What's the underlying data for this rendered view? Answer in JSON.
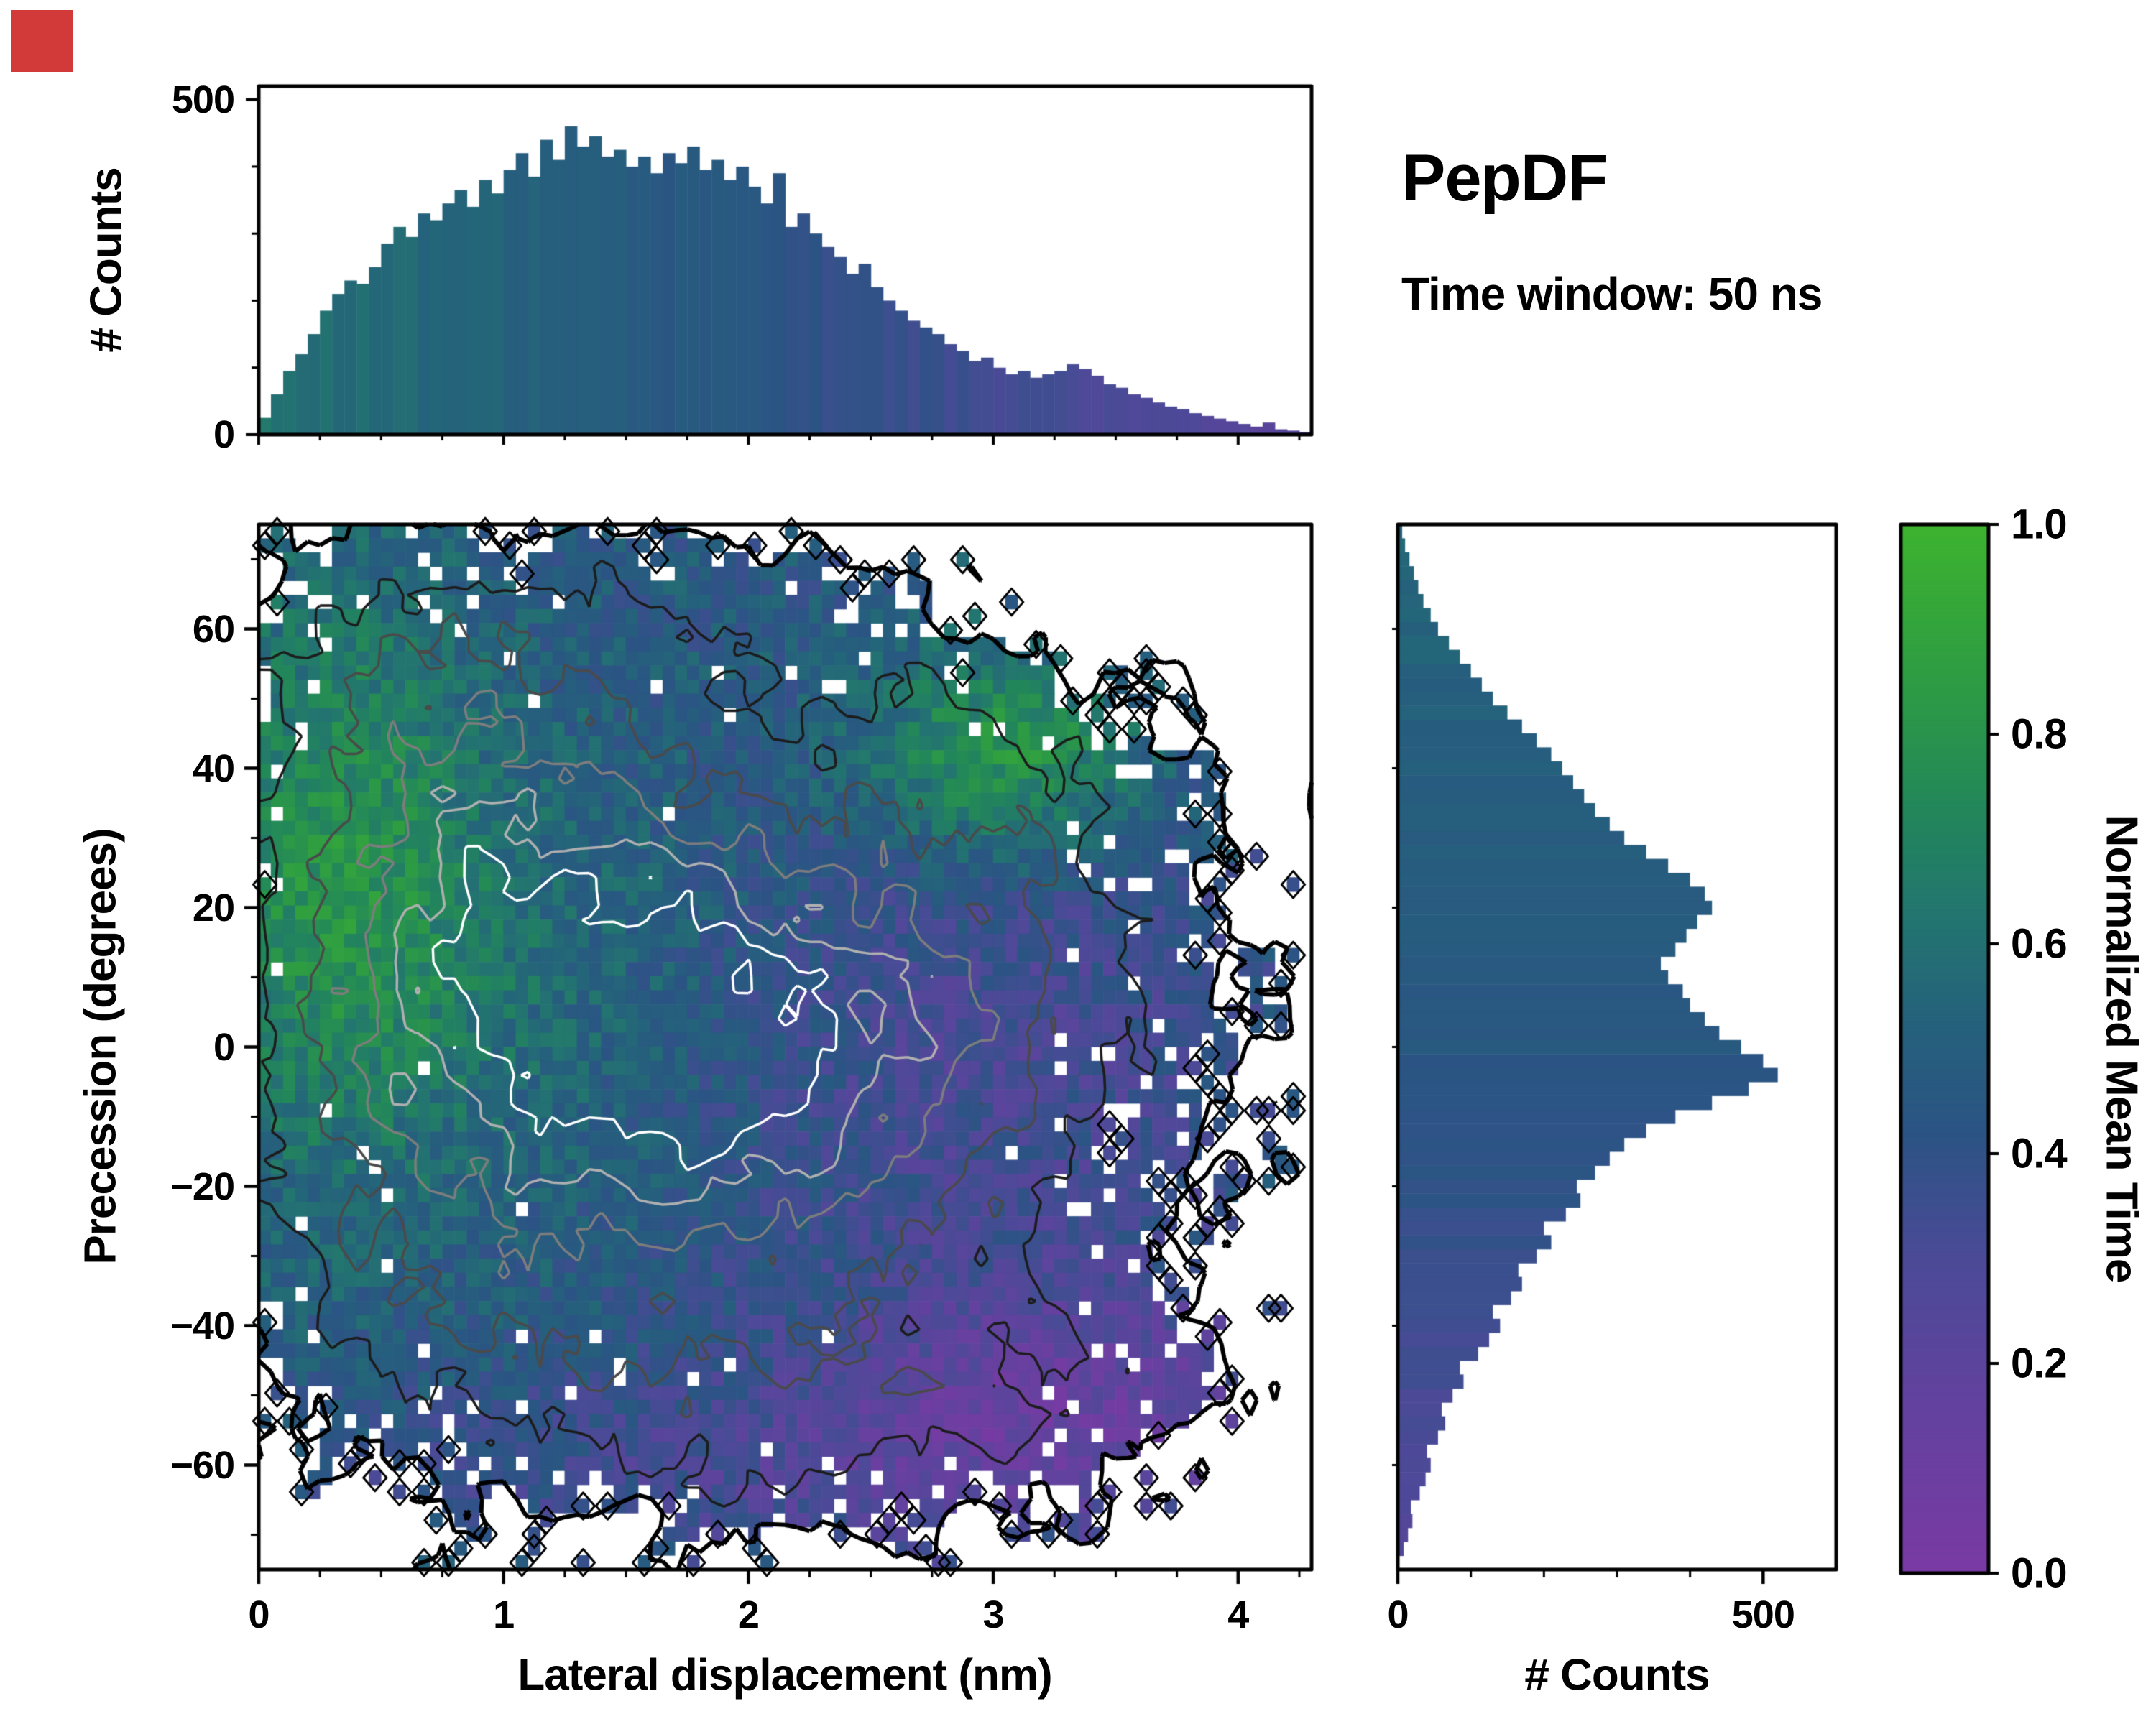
{
  "header": {
    "title": "PepDF",
    "subtitle": "Time window: 50 ns"
  },
  "decorations": {
    "corner_marker_color": "#d23a3a"
  },
  "chart_data": {
    "type": "heatmap",
    "description": "2D histogram of precession angle vs lateral displacement colored by normalized mean time, with grayscale density contours and marginal count histograms",
    "panels": {
      "top_histogram": {
        "type": "bar",
        "orientation": "vertical",
        "ylabel": "# Counts",
        "x_start": 0,
        "bin_width": 0.05,
        "ylim": [
          0,
          520
        ],
        "ytick_values": [
          0,
          500
        ],
        "ytick_labels": [
          "0",
          "500"
        ],
        "values": [
          25,
          60,
          95,
          120,
          150,
          185,
          210,
          230,
          225,
          250,
          285,
          310,
          295,
          330,
          320,
          345,
          365,
          340,
          380,
          360,
          395,
          420,
          385,
          440,
          410,
          460,
          430,
          445,
          415,
          425,
          400,
          415,
          390,
          420,
          405,
          430,
          395,
          410,
          380,
          400,
          370,
          345,
          390,
          310,
          330,
          300,
          280,
          265,
          240,
          255,
          220,
          200,
          185,
          170,
          160,
          150,
          135,
          125,
          110,
          115,
          100,
          90,
          95,
          85,
          90,
          95,
          105,
          98,
          88,
          75,
          70,
          60,
          55,
          48,
          42,
          38,
          32,
          28,
          24,
          20,
          16,
          12,
          18,
          8,
          6,
          4
        ]
      },
      "main": {
        "type": "heatmap",
        "xlabel": "Lateral displacement (nm)",
        "ylabel": "Precession (degrees)",
        "xlim": [
          0,
          4.3
        ],
        "ylim": [
          -75,
          75
        ],
        "xtick_values": [
          0,
          1,
          2,
          3,
          4
        ],
        "xtick_labels": [
          "0",
          "1",
          "2",
          "3",
          "4"
        ],
        "ytick_values": [
          -60,
          -40,
          -20,
          0,
          20,
          40,
          60
        ],
        "ytick_labels": [
          "−60",
          "−40",
          "−20",
          "0",
          "20",
          "40",
          "60"
        ],
        "grid": [
          86,
          74
        ],
        "colormap_stops": [
          [
            0,
            "#7a3aa4"
          ],
          [
            0.15,
            "#64419f"
          ],
          [
            0.3,
            "#4b4a97"
          ],
          [
            0.42,
            "#2b5484"
          ],
          [
            0.52,
            "#25607c"
          ],
          [
            0.62,
            "#237471"
          ],
          [
            0.72,
            "#22855c"
          ],
          [
            0.84,
            "#2c9a45"
          ],
          [
            1,
            "#3db32f"
          ]
        ],
        "contour_colors": [
          "#1c1c1c",
          "#4a4a4a",
          "#7d7d7d",
          "#b0b0b0",
          "#ffffff"
        ],
        "boundary_color": "#000000",
        "generator": {
          "seed": 42,
          "threshold": 0.32,
          "noise_amp": 0.9,
          "noise_scale": 1.0,
          "contour_fracs": [
            0.2,
            0.38,
            0.54,
            0.68,
            0.8
          ],
          "density_gaussians": [
            [
              1.25,
              8,
              0.85,
              30,
              1.0
            ],
            [
              1.9,
              -10,
              0.75,
              24,
              0.95
            ],
            [
              0.8,
              28,
              0.6,
              20,
              0.75
            ],
            [
              2.5,
              12,
              0.8,
              26,
              0.6
            ],
            [
              0.5,
              -20,
              0.5,
              25,
              0.5
            ],
            [
              3.2,
              -48,
              0.6,
              13,
              0.5
            ],
            [
              3.05,
              40,
              0.5,
              12,
              0.45
            ],
            [
              0.6,
              55,
              0.55,
              14,
              0.4
            ],
            [
              1.7,
              62,
              0.9,
              10,
              0.35
            ],
            [
              3.3,
              2,
              0.65,
              22,
              0.45
            ],
            [
              1.5,
              -47,
              0.9,
              13,
              0.45
            ],
            [
              2.2,
              -60,
              0.7,
              10,
              0.3
            ]
          ],
          "mean_time_base": 0.46,
          "mean_time_gaussians": [
            [
              0.3,
              25,
              0.45,
              30,
              0.3
            ],
            [
              3.05,
              42,
              0.4,
              11,
              0.38
            ],
            [
              3.3,
              -52,
              0.8,
              14,
              -0.28
            ],
            [
              2.95,
              0,
              0.9,
              26,
              -0.17
            ],
            [
              1.8,
              -62,
              1.2,
              10,
              -0.12
            ],
            [
              1.2,
              10,
              0.8,
              25,
              0.1
            ]
          ]
        }
      },
      "right_histogram": {
        "type": "bar",
        "orientation": "horizontal",
        "xlabel": "# Counts",
        "y_start": -73,
        "bin_width": 2,
        "xlim": [
          0,
          600
        ],
        "xtick_values": [
          0,
          500
        ],
        "xtick_labels": [
          "0",
          "500"
        ],
        "values": [
          8,
          14,
          20,
          18,
          30,
          38,
          45,
          40,
          55,
          65,
          60,
          75,
          90,
          85,
          110,
          125,
          140,
          130,
          155,
          170,
          165,
          190,
          210,
          200,
          230,
          250,
          245,
          270,
          290,
          310,
          340,
          380,
          430,
          480,
          520,
          500,
          470,
          440,
          420,
          400,
          390,
          370,
          360,
          380,
          395,
          410,
          430,
          420,
          400,
          370,
          340,
          310,
          290,
          270,
          255,
          240,
          225,
          210,
          190,
          170,
          150,
          130,
          115,
          100,
          85,
          70,
          55,
          45,
          35,
          28,
          22,
          16,
          10,
          6
        ]
      },
      "colorbar": {
        "label": "Normalized Mean Time",
        "range": [
          0,
          1
        ],
        "tick_values": [
          0,
          0.2,
          0.4,
          0.6,
          0.8,
          1.0
        ],
        "tick_labels": [
          "0.0",
          "0.2",
          "0.4",
          "0.6",
          "0.8",
          "1.0"
        ]
      }
    }
  }
}
